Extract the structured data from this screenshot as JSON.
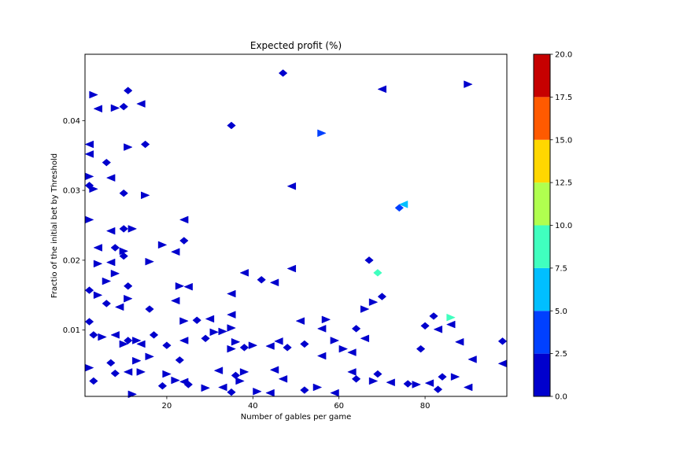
{
  "chart_data": {
    "type": "heatmap",
    "title": "Expected profit (%)",
    "xlabel": "Number of gables per game",
    "ylabel": "Fractio of the initial bet by Threshold",
    "xlim": [
      1,
      99
    ],
    "ylim": [
      0.0005,
      0.0495
    ],
    "xticks": [
      20,
      40,
      60,
      80
    ],
    "xtick_labels": [
      "20",
      "40",
      "60",
      "80"
    ],
    "yticks": [
      0.01,
      0.02,
      0.03,
      0.04
    ],
    "ytick_labels": [
      "0.01",
      "0.02",
      "0.03",
      "0.04"
    ],
    "grid": false,
    "colorbar": {
      "levels": [
        0.0,
        2.5,
        5.0,
        7.5,
        10.0,
        12.5,
        15.0,
        17.5,
        20.0
      ],
      "tick_labels": [
        "0.0",
        "2.5",
        "5.0",
        "7.5",
        "10.0",
        "12.5",
        "15.0",
        "17.5",
        "20.0"
      ],
      "colors": [
        "#0000cd",
        "#0040ff",
        "#00bfff",
        "#40ffbf",
        "#b0ff4f",
        "#ffd700",
        "#ff5a00",
        "#c60000"
      ]
    },
    "points": [
      [
        47,
        0.0468,
        1
      ],
      [
        90,
        0.0452,
        1
      ],
      [
        70,
        0.0445,
        1
      ],
      [
        11,
        0.0443,
        1
      ],
      [
        3,
        0.0437,
        1
      ],
      [
        14,
        0.0424,
        1
      ],
      [
        10,
        0.042,
        1
      ],
      [
        8,
        0.0418,
        1
      ],
      [
        4,
        0.0417,
        1
      ],
      [
        35,
        0.0393,
        1
      ],
      [
        56,
        0.0382,
        2
      ],
      [
        2,
        0.0366,
        1
      ],
      [
        15,
        0.0366,
        1
      ],
      [
        11,
        0.0362,
        1
      ],
      [
        2,
        0.0352,
        1
      ],
      [
        6,
        0.034,
        1
      ],
      [
        2,
        0.032,
        1
      ],
      [
        7,
        0.0318,
        1
      ],
      [
        2,
        0.0307,
        1
      ],
      [
        3,
        0.0302,
        1
      ],
      [
        49,
        0.0306,
        1
      ],
      [
        10,
        0.0296,
        1
      ],
      [
        15,
        0.0293,
        1
      ],
      [
        75,
        0.028,
        3
      ],
      [
        74,
        0.0275,
        2
      ],
      [
        2,
        0.0258,
        1
      ],
      [
        24,
        0.0258,
        1
      ],
      [
        10,
        0.0245,
        1
      ],
      [
        12,
        0.0245,
        1
      ],
      [
        7,
        0.0242,
        1
      ],
      [
        24,
        0.0228,
        1
      ],
      [
        19,
        0.0222,
        1
      ],
      [
        4,
        0.0218,
        1
      ],
      [
        8,
        0.0218,
        1
      ],
      [
        10,
        0.0213,
        1
      ],
      [
        22,
        0.0212,
        1
      ],
      [
        10,
        0.0206,
        1
      ],
      [
        16,
        0.0198,
        1
      ],
      [
        7,
        0.0197,
        1
      ],
      [
        67,
        0.02,
        1
      ],
      [
        4,
        0.0195,
        1
      ],
      [
        38,
        0.0182,
        1
      ],
      [
        69,
        0.0182,
        4
      ],
      [
        8,
        0.0181,
        1
      ],
      [
        49,
        0.0188,
        1
      ],
      [
        42,
        0.0172,
        1
      ],
      [
        6,
        0.017,
        1
      ],
      [
        45,
        0.0168,
        1
      ],
      [
        11,
        0.0163,
        1
      ],
      [
        23,
        0.0163,
        1
      ],
      [
        25,
        0.0162,
        1
      ],
      [
        2,
        0.0157,
        1
      ],
      [
        4,
        0.015,
        1
      ],
      [
        35,
        0.0152,
        1
      ],
      [
        70,
        0.0148,
        1
      ],
      [
        11,
        0.0145,
        1
      ],
      [
        22,
        0.0142,
        1
      ],
      [
        6,
        0.0138,
        1
      ],
      [
        68,
        0.014,
        1
      ],
      [
        9,
        0.0133,
        1
      ],
      [
        16,
        0.013,
        1
      ],
      [
        66,
        0.013,
        1
      ],
      [
        35,
        0.0122,
        1
      ],
      [
        82,
        0.012,
        1
      ],
      [
        86,
        0.0118,
        4
      ],
      [
        30,
        0.0116,
        1
      ],
      [
        27,
        0.0114,
        1
      ],
      [
        24,
        0.0113,
        1
      ],
      [
        51,
        0.0113,
        1
      ],
      [
        2,
        0.0112,
        1
      ],
      [
        57,
        0.0115,
        1
      ],
      [
        86,
        0.0108,
        1
      ],
      [
        80,
        0.0106,
        1
      ],
      [
        35,
        0.0103,
        1
      ],
      [
        56,
        0.0102,
        1
      ],
      [
        64,
        0.0102,
        1
      ],
      [
        31,
        0.0097,
        1
      ],
      [
        83,
        0.0101,
        1
      ],
      [
        3,
        0.0093,
        1
      ],
      [
        5,
        0.009,
        1
      ],
      [
        8,
        0.0093,
        1
      ],
      [
        17,
        0.0093,
        1
      ],
      [
        33,
        0.0098,
        1
      ],
      [
        66,
        0.0088,
        1
      ],
      [
        11,
        0.0085,
        1
      ],
      [
        13,
        0.0085,
        1
      ],
      [
        24,
        0.0085,
        1
      ],
      [
        29,
        0.0088,
        1
      ],
      [
        36,
        0.0083,
        1
      ],
      [
        46,
        0.0084,
        1
      ],
      [
        52,
        0.008,
        1
      ],
      [
        59,
        0.0085,
        1
      ],
      [
        88,
        0.0083,
        1
      ],
      [
        98,
        0.0084,
        1
      ],
      [
        10,
        0.008,
        1
      ],
      [
        14,
        0.008,
        1
      ],
      [
        20,
        0.0078,
        1
      ],
      [
        40,
        0.0078,
        1
      ],
      [
        44,
        0.0077,
        1
      ],
      [
        38,
        0.0075,
        1
      ],
      [
        61,
        0.0073,
        1
      ],
      [
        63,
        0.0068,
        1
      ],
      [
        48,
        0.0075,
        1
      ],
      [
        35,
        0.0073,
        1
      ],
      [
        56,
        0.0063,
        1
      ],
      [
        79,
        0.0073,
        1
      ],
      [
        16,
        0.0062,
        1
      ],
      [
        91,
        0.0058,
        1
      ],
      [
        23,
        0.0057,
        1
      ],
      [
        13,
        0.0056,
        1
      ],
      [
        98,
        0.0052,
        1
      ],
      [
        7,
        0.0053,
        1
      ],
      [
        2,
        0.0046,
        1
      ],
      [
        11,
        0.004,
        1
      ],
      [
        8,
        0.0038,
        1
      ],
      [
        14,
        0.004,
        1
      ],
      [
        32,
        0.0042,
        1
      ],
      [
        36,
        0.0035,
        1
      ],
      [
        38,
        0.004,
        1
      ],
      [
        63,
        0.004,
        1
      ],
      [
        69,
        0.0037,
        1
      ],
      [
        20,
        0.0037,
        1
      ],
      [
        45,
        0.0043,
        1
      ],
      [
        3,
        0.0027,
        1
      ],
      [
        22,
        0.0028,
        1
      ],
      [
        24,
        0.0026,
        1
      ],
      [
        25,
        0.0022,
        1
      ],
      [
        37,
        0.0027,
        1
      ],
      [
        47,
        0.003,
        1
      ],
      [
        64,
        0.003,
        1
      ],
      [
        68,
        0.0027,
        1
      ],
      [
        72,
        0.0025,
        1
      ],
      [
        76,
        0.0023,
        1
      ],
      [
        78,
        0.0022,
        1
      ],
      [
        81,
        0.0024,
        1
      ],
      [
        84,
        0.0033,
        1
      ],
      [
        87,
        0.0033,
        1
      ],
      [
        90,
        0.0018,
        1
      ],
      [
        19,
        0.002,
        1
      ],
      [
        29,
        0.0017,
        1
      ],
      [
        33,
        0.0018,
        1
      ],
      [
        35,
        0.0011,
        1
      ],
      [
        41,
        0.0012,
        1
      ],
      [
        44,
        0.001,
        1
      ],
      [
        52,
        0.0014,
        1
      ],
      [
        55,
        0.0018,
        1
      ],
      [
        59,
        0.001,
        1
      ],
      [
        83,
        0.0015,
        1
      ],
      [
        12,
        0.0008,
        1
      ]
    ]
  }
}
